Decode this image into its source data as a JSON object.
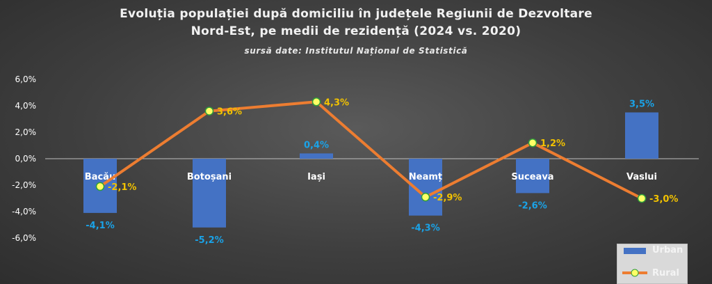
{
  "chart_data": {
    "type": "bar",
    "title_lines": [
      "Evoluția populației după domiciliu în județele Regiunii de Dezvoltare",
      "Nord-Est, pe medii de rezidență (2024 vs. 2020)"
    ],
    "subtitle": "sursă date: Institutul Național de Statistică",
    "categories": [
      "Bacău",
      "Botoșani",
      "Iași",
      "Neamț",
      "Suceava",
      "Vaslui"
    ],
    "series": [
      {
        "name": "Urban",
        "kind": "bar",
        "values": [
          -4.1,
          -5.2,
          0.4,
          -4.3,
          -2.6,
          3.5
        ],
        "labels": [
          "-4,1%",
          "-5,2%",
          "0,4%",
          "-4,3%",
          "-2,6%",
          "3,5%"
        ],
        "color": "#4472c4",
        "label_color": "#1aa3e8"
      },
      {
        "name": "Rural",
        "kind": "line",
        "values": [
          -2.1,
          3.6,
          4.3,
          -2.9,
          1.2,
          -3.0
        ],
        "labels": [
          "-2,1%",
          "3,6%",
          "4,3%",
          "-2,9%",
          "1,2%",
          "-3,0%"
        ],
        "color": "#ed7d31",
        "marker_color": "#ffff66",
        "label_color": "#f2c200"
      }
    ],
    "ylim": [
      -6,
      6
    ],
    "yticks": [
      6,
      4,
      2,
      0,
      -2,
      -4,
      -6
    ],
    "ytick_labels": [
      "6,0%",
      "4,0%",
      "2,0%",
      "0,0%",
      "-2,0%",
      "-4,0%",
      "-6,0%"
    ],
    "grid": false,
    "legend": "bottom-right",
    "category_label_color": "#ffffff",
    "axis_color": "#bfbfbf"
  }
}
